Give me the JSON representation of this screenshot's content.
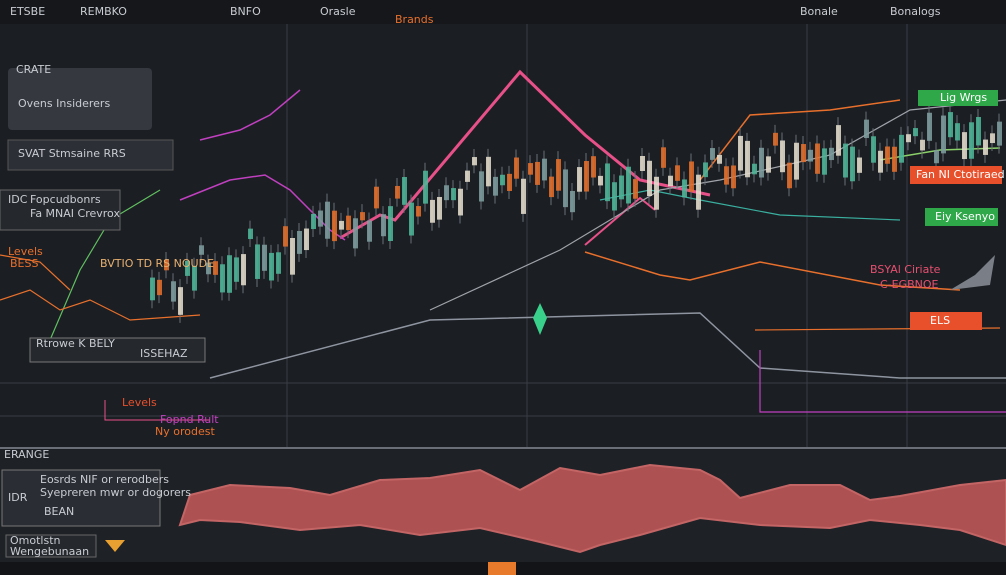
{
  "toolbar": {
    "items": [
      "ETSBE",
      "REMBKO",
      "BNFO",
      "Orasle",
      "Bonale",
      "Bonalogs"
    ]
  },
  "left_panel": {
    "title": "CRATE",
    "subtitle": "Ovens Insiderers",
    "strategy": "SVAT Stmsaine RRS",
    "code": "IDC",
    "info_1": "Fopcudbonrs",
    "info_2": "Fa MNAI Crevrox",
    "levels_small": "Levels",
    "levels_sub": "BESS"
  },
  "annotations": {
    "mid_label": "BVTIO TD RS NOUDE",
    "box_label": "Rtrowe K BELY",
    "box_value": "ISSEHAZ",
    "levels": "Levels",
    "levels_note_1": "Fopnd Rult",
    "levels_note_2": "Ny orodest",
    "top_marker": "Brands"
  },
  "right_tags": {
    "tag_1": "Lig Wrgs",
    "tag_2": "Fan NI Ctotiraed",
    "tag_3": "Eiy Ksenyo",
    "tag_4": "BSYAl Ciriate",
    "tag_5": "C-EGBNOE",
    "tag_6": "ELS"
  },
  "lower_pane": {
    "header": "ERANGE",
    "title": "Eosrds NIF or rerodbers",
    "desc": "Syepreren mwr or dogorers",
    "code": "IDR",
    "name": "BEAN",
    "footer_1": "Omotlstn",
    "footer_2": "Wengebunaan"
  }
}
